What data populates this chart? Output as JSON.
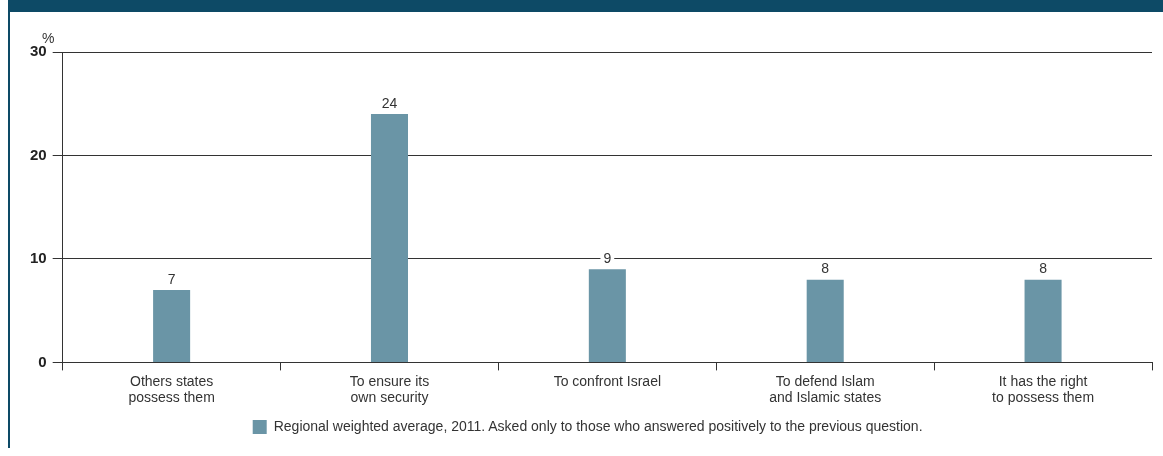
{
  "chart_data": {
    "type": "bar",
    "ylabel": "%",
    "categories": [
      "Others states possess them",
      "To ensure its own security",
      "To confront Israel",
      "To defend Islam and Islamic states",
      "It has the right to possess them"
    ],
    "series": [
      {
        "name": "Regional weighted average, 2011. Asked only to those who answered positively to the previous question.",
        "color": "#6a95a6",
        "values": [
          7,
          24,
          9,
          8,
          8
        ]
      }
    ],
    "ylim": [
      0,
      30
    ],
    "yticks": [
      0,
      10,
      20,
      30
    ],
    "grid": "y",
    "legend": "bottom",
    "data_labels": true
  }
}
